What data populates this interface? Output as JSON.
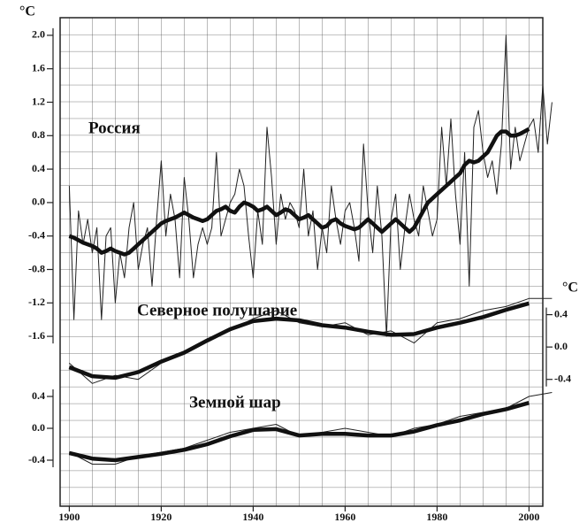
{
  "chart_data": [
    {
      "type": "line",
      "title": "Россия",
      "ylabel": "°C",
      "x": [
        1900,
        1901,
        1902,
        1903,
        1904,
        1905,
        1906,
        1907,
        1908,
        1909,
        1910,
        1911,
        1912,
        1913,
        1914,
        1915,
        1916,
        1917,
        1918,
        1919,
        1920,
        1921,
        1922,
        1923,
        1924,
        1925,
        1926,
        1927,
        1928,
        1929,
        1930,
        1931,
        1932,
        1933,
        1934,
        1935,
        1936,
        1937,
        1938,
        1939,
        1940,
        1941,
        1942,
        1943,
        1944,
        1945,
        1946,
        1947,
        1948,
        1949,
        1950,
        1951,
        1952,
        1953,
        1954,
        1955,
        1956,
        1957,
        1958,
        1959,
        1960,
        1961,
        1962,
        1963,
        1964,
        1965,
        1966,
        1967,
        1968,
        1969,
        1970,
        1971,
        1972,
        1973,
        1974,
        1975,
        1976,
        1977,
        1978,
        1979,
        1980,
        1981,
        1982,
        1983,
        1984,
        1985,
        1986,
        1987,
        1988,
        1989,
        1990,
        1991,
        1992,
        1993,
        1994,
        1995,
        1996,
        1997,
        1998,
        1999,
        2000,
        2001,
        2002,
        2003,
        2004,
        2005
      ],
      "series": [
        {
          "color": "#222222",
          "values": [
            0.2,
            -1.4,
            -0.1,
            -0.5,
            -0.2,
            -0.6,
            -0.3,
            -1.4,
            -0.4,
            -0.3,
            -1.2,
            -0.6,
            -0.9,
            -0.3,
            0.0,
            -0.8,
            -0.5,
            -0.3,
            -1.0,
            -0.2,
            0.5,
            -0.4,
            0.1,
            -0.2,
            -0.9,
            0.3,
            -0.2,
            -0.9,
            -0.5,
            -0.3,
            -0.5,
            -0.3,
            0.6,
            -0.4,
            -0.2,
            0.0,
            0.1,
            0.4,
            0.2,
            -0.4,
            -0.9,
            -0.1,
            -0.5,
            0.9,
            0.3,
            -0.5,
            0.1,
            -0.2,
            0.0,
            -0.1,
            -0.3,
            0.4,
            -0.4,
            -0.1,
            -0.8,
            -0.3,
            -0.6,
            0.2,
            -0.2,
            -0.5,
            -0.1,
            0.0,
            -0.3,
            -0.7,
            0.7,
            -0.1,
            -0.6,
            0.2,
            -0.4,
            -1.6,
            -0.2,
            0.1,
            -0.8,
            -0.3,
            0.1,
            -0.2,
            -0.4,
            0.2,
            -0.1,
            -0.4,
            -0.2,
            0.9,
            0.2,
            1.0,
            0.1,
            -0.5,
            0.6,
            -1.0,
            0.9,
            1.1,
            0.6,
            0.3,
            0.5,
            0.1,
            0.7,
            2.0,
            0.4,
            0.9,
            0.5,
            0.7,
            0.9,
            1.0,
            0.6,
            1.4,
            0.7,
            1.2
          ]
        },
        {
          "color": "#111111",
          "values": [
            -0.4,
            -0.42,
            -0.45,
            -0.48,
            -0.5,
            -0.52,
            -0.55,
            -0.6,
            -0.58,
            -0.55,
            -0.58,
            -0.6,
            -0.62,
            -0.6,
            -0.55,
            -0.5,
            -0.45,
            -0.4,
            -0.35,
            -0.3,
            -0.25,
            -0.22,
            -0.2,
            -0.18,
            -0.15,
            -0.12,
            -0.15,
            -0.18,
            -0.2,
            -0.22,
            -0.2,
            -0.15,
            -0.1,
            -0.08,
            -0.05,
            -0.1,
            -0.12,
            -0.05,
            0.0,
            -0.02,
            -0.05,
            -0.1,
            -0.08,
            -0.05,
            -0.1,
            -0.15,
            -0.12,
            -0.08,
            -0.1,
            -0.15,
            -0.2,
            -0.18,
            -0.15,
            -0.2,
            -0.25,
            -0.3,
            -0.28,
            -0.22,
            -0.2,
            -0.25,
            -0.28,
            -0.3,
            -0.32,
            -0.3,
            -0.25,
            -0.2,
            -0.25,
            -0.3,
            -0.35,
            -0.3,
            -0.25,
            -0.2,
            -0.25,
            -0.3,
            -0.35,
            -0.3,
            -0.2,
            -0.1,
            0.0,
            0.05,
            0.1,
            0.15,
            0.2,
            0.25,
            0.3,
            0.35,
            0.45,
            0.5,
            0.48,
            0.5,
            0.55,
            0.6,
            0.7,
            0.8,
            0.85,
            0.85,
            0.8,
            0.8,
            0.82,
            0.85,
            0.88,
            null,
            null,
            null,
            null,
            null
          ]
        }
      ],
      "xlim": [
        1898,
        2003
      ],
      "ylim": [
        -1.8,
        2.2
      ],
      "yticks": [
        {
          "value": 2,
          "label": "2.0"
        },
        1.6,
        1.2,
        0.8,
        0.4,
        {
          "value": 0,
          "label": "0.0"
        },
        -0.4,
        -0.8,
        -1.2,
        -1.6
      ],
      "y_axis_side": "left"
    },
    {
      "type": "line",
      "title": "Северное полушарие",
      "ylabel": "°C",
      "x": [
        1900,
        1905,
        1910,
        1915,
        1920,
        1925,
        1930,
        1935,
        1940,
        1945,
        1950,
        1955,
        1960,
        1965,
        1970,
        1975,
        1980,
        1985,
        1990,
        1995,
        2000,
        2005
      ],
      "series": [
        {
          "color": "#222222",
          "values": [
            -0.2,
            -0.45,
            -0.35,
            -0.4,
            -0.2,
            -0.05,
            0.1,
            0.2,
            0.35,
            0.45,
            0.3,
            0.25,
            0.3,
            0.15,
            0.2,
            0.05,
            0.3,
            0.35,
            0.45,
            0.5,
            0.6,
            0.6
          ]
        },
        {
          "color": "#111111",
          "values": [
            -0.25,
            -0.36,
            -0.38,
            -0.31,
            -0.18,
            -0.07,
            0.08,
            0.22,
            0.32,
            0.35,
            0.33,
            0.27,
            0.24,
            0.19,
            0.15,
            0.16,
            0.24,
            0.3,
            0.37,
            0.46,
            0.54,
            null
          ]
        }
      ],
      "xlim": [
        1898,
        2003
      ],
      "ylim": [
        -0.6,
        0.8
      ],
      "yticks": [
        0.4,
        {
          "value": 0,
          "label": "0.0"
        },
        -0.4
      ],
      "y_axis_side": "right"
    },
    {
      "type": "line",
      "title": "Земной шар",
      "x": [
        1900,
        1905,
        1910,
        1915,
        1920,
        1925,
        1930,
        1935,
        1940,
        1945,
        1950,
        1955,
        1960,
        1965,
        1970,
        1975,
        1980,
        1985,
        1990,
        1995,
        2000,
        2005
      ],
      "series": [
        {
          "color": "#222222",
          "values": [
            -0.3,
            -0.45,
            -0.45,
            -0.35,
            -0.3,
            -0.25,
            -0.15,
            -0.05,
            0.0,
            0.05,
            -0.1,
            -0.05,
            0.0,
            -0.05,
            -0.1,
            0.0,
            0.05,
            0.15,
            0.2,
            0.25,
            0.4,
            0.45
          ]
        },
        {
          "color": "#111111",
          "values": [
            -0.31,
            -0.38,
            -0.4,
            -0.36,
            -0.32,
            -0.27,
            -0.2,
            -0.1,
            -0.02,
            -0.01,
            -0.09,
            -0.07,
            -0.07,
            -0.09,
            -0.09,
            -0.04,
            0.04,
            0.1,
            0.18,
            0.24,
            0.32,
            null
          ]
        }
      ],
      "xlim": [
        1898,
        2003
      ],
      "ylim": [
        -0.6,
        0.6
      ],
      "yticks": [
        0.4,
        {
          "value": 0,
          "label": "0.0"
        },
        -0.4
      ],
      "xticks": [
        1900,
        1920,
        1940,
        1960,
        1980,
        2000
      ],
      "y_axis_side": "left"
    }
  ]
}
